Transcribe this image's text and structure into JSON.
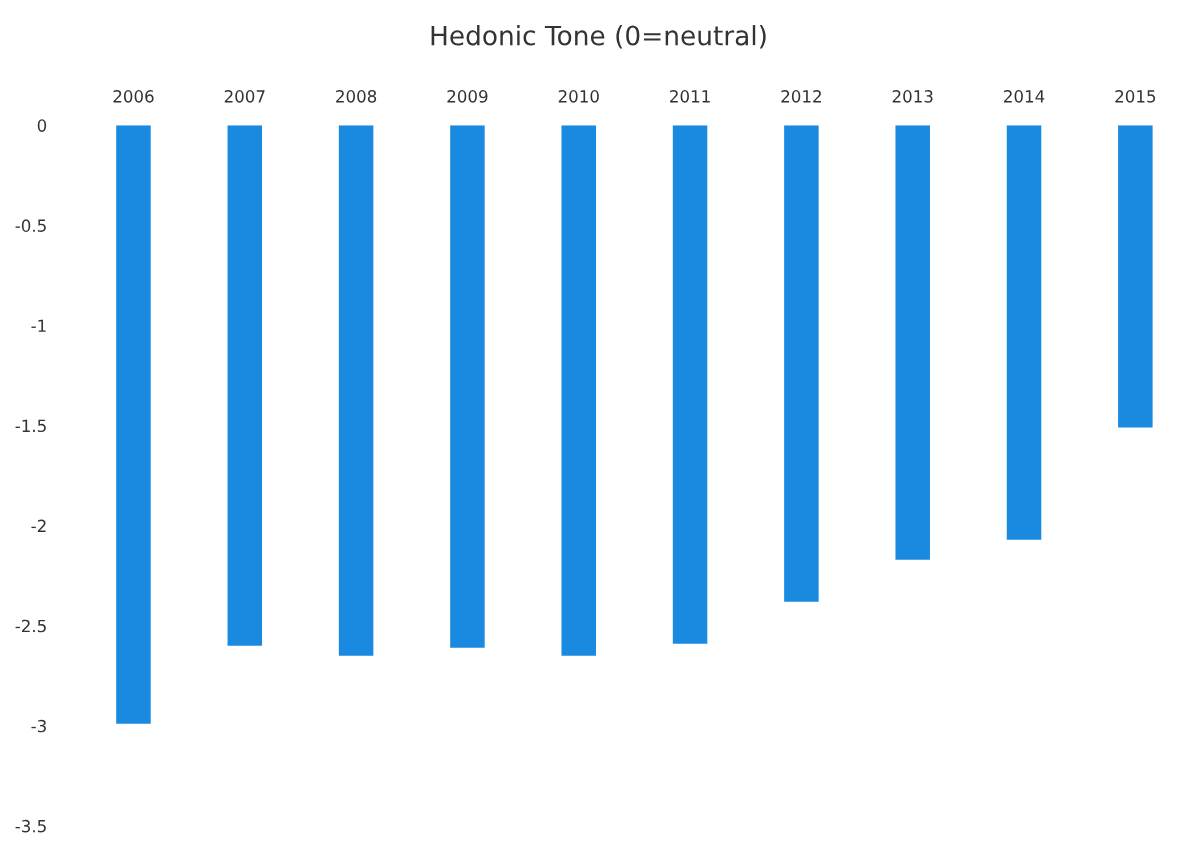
{
  "chart_data": {
    "type": "bar",
    "title": "Hedonic Tone (0=neutral)",
    "categories": [
      "2006",
      "2007",
      "2008",
      "2009",
      "2010",
      "2011",
      "2012",
      "2013",
      "2014",
      "2015"
    ],
    "values": [
      -2.99,
      -2.6,
      -2.65,
      -2.61,
      -2.65,
      -2.59,
      -2.38,
      -2.17,
      -2.07,
      -1.51
    ],
    "color": "#1a8ae0",
    "ylim": [
      -3.5,
      0
    ],
    "yticks": [
      {
        "value": 0,
        "label": "0"
      },
      {
        "value": -0.5,
        "label": "-0.5"
      },
      {
        "value": -1,
        "label": "-1"
      },
      {
        "value": -1.5,
        "label": "-1.5"
      },
      {
        "value": -2,
        "label": "-2"
      },
      {
        "value": -2.5,
        "label": "-2.5"
      },
      {
        "value": -3,
        "label": "-3"
      },
      {
        "value": -3.5,
        "label": "-3.5"
      }
    ],
    "grid": false
  }
}
